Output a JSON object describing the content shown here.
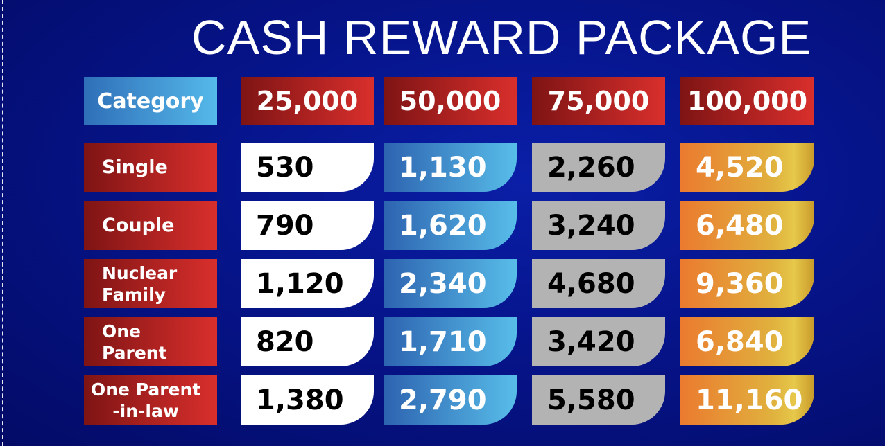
{
  "title": "CASH REWARD PACKAGE",
  "header": {
    "category": "Category",
    "amounts": [
      "25,000",
      "50,000",
      "75,000",
      "100,000"
    ]
  },
  "rows": [
    {
      "label_lines": [
        "Single"
      ],
      "values": [
        "530",
        "1,130",
        "2,260",
        "4,520"
      ]
    },
    {
      "label_lines": [
        "Couple"
      ],
      "values": [
        "790",
        "1,620",
        "3,240",
        "6,480"
      ]
    },
    {
      "label_lines": [
        "Nuclear",
        "Family"
      ],
      "values": [
        "1,120",
        "2,340",
        "4,680",
        "9,360"
      ]
    },
    {
      "label_lines": [
        "One",
        "Parent"
      ],
      "values": [
        "820",
        "1,710",
        "3,420",
        "6,840"
      ]
    },
    {
      "label_lines": [
        "One Parent",
        "-in-law"
      ],
      "values": [
        "1,380",
        "2,790",
        "5,580",
        "11,160"
      ]
    }
  ],
  "colors": {
    "background": "#06148a",
    "header_red": "#c62828",
    "category_blue": "#4a9fdc",
    "col1": "#ffffff",
    "col2": "#3b8fd0",
    "col3": "#b3b3b3",
    "col4": "#e89a35"
  }
}
